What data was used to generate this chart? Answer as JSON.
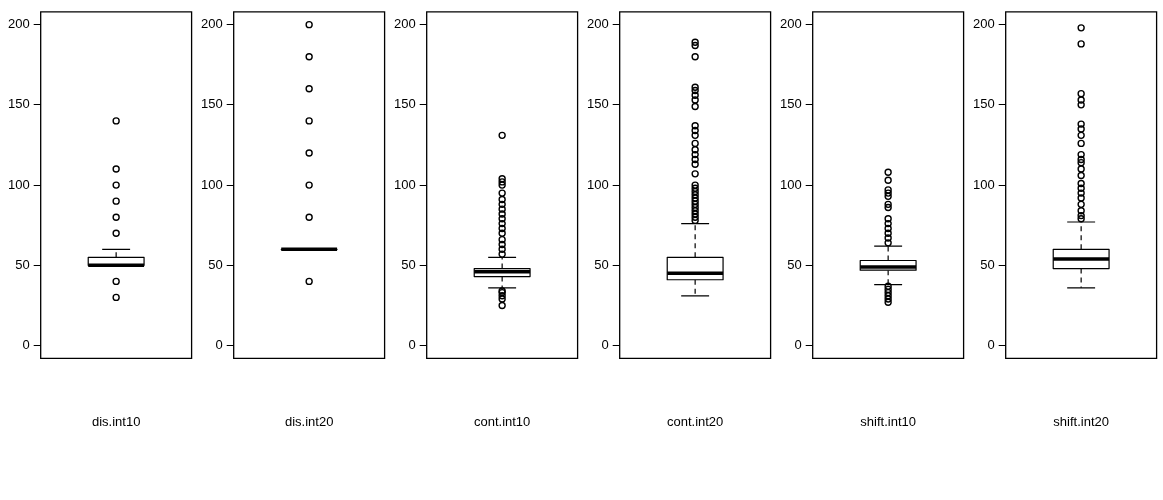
{
  "chart_data": [
    {
      "type": "box",
      "categories": [
        "dis.int10"
      ],
      "ylim": [
        -8,
        208
      ],
      "yticks": [
        0,
        50,
        100,
        150,
        200
      ],
      "marker": "circle",
      "boxes": [
        {
          "low": 50,
          "q1": 50,
          "median": 50,
          "q3": 55,
          "high": 60,
          "outliers": [
            30,
            40,
            70,
            80,
            90,
            100,
            110,
            140
          ]
        }
      ]
    },
    {
      "type": "box",
      "categories": [
        "dis.int20"
      ],
      "ylim": [
        -8,
        208
      ],
      "yticks": [
        0,
        50,
        100,
        150,
        200
      ],
      "marker": "circle",
      "boxes": [
        {
          "low": 60,
          "q1": 60,
          "median": 60,
          "q3": 60,
          "high": 60,
          "outliers": [
            40,
            80,
            100,
            120,
            140,
            160,
            180,
            200
          ]
        }
      ]
    },
    {
      "type": "box",
      "categories": [
        "cont.int10"
      ],
      "ylim": [
        -8,
        208
      ],
      "yticks": [
        0,
        50,
        100,
        150,
        200
      ],
      "marker": "circle",
      "boxes": [
        {
          "low": 36,
          "q1": 43,
          "median": 46,
          "q3": 48,
          "high": 55,
          "outliers": [
            25,
            29,
            31,
            33,
            34,
            57,
            60,
            63,
            66,
            70,
            73,
            76,
            79,
            82,
            85,
            88,
            91,
            95,
            100,
            102,
            104,
            131
          ]
        }
      ]
    },
    {
      "type": "box",
      "categories": [
        "cont.int20"
      ],
      "ylim": [
        -8,
        208
      ],
      "yticks": [
        0,
        50,
        100,
        150,
        200
      ],
      "marker": "circle",
      "boxes": [
        {
          "low": 31,
          "q1": 41,
          "median": 45,
          "q3": 55,
          "high": 76,
          "outliers": [
            78,
            80,
            82,
            84,
            86,
            88,
            90,
            92,
            94,
            96,
            98,
            100,
            107,
            113,
            116,
            119,
            122,
            126,
            131,
            134,
            137,
            149,
            153,
            156,
            159,
            161,
            180,
            187,
            189
          ]
        }
      ]
    },
    {
      "type": "box",
      "categories": [
        "shift.int10"
      ],
      "ylim": [
        -8,
        208
      ],
      "yticks": [
        0,
        50,
        100,
        150,
        200
      ],
      "marker": "circle",
      "boxes": [
        {
          "low": 38,
          "q1": 47,
          "median": 49,
          "q3": 53,
          "high": 62,
          "outliers": [
            27,
            29,
            31,
            33,
            35,
            37,
            64,
            67,
            70,
            73,
            76,
            79,
            86,
            88,
            93,
            95,
            97,
            103,
            108
          ]
        }
      ]
    },
    {
      "type": "box",
      "categories": [
        "shift.int20"
      ],
      "ylim": [
        -8,
        208
      ],
      "yticks": [
        0,
        50,
        100,
        150,
        200
      ],
      "marker": "circle",
      "boxes": [
        {
          "low": 36,
          "q1": 48,
          "median": 54,
          "q3": 60,
          "high": 77,
          "outliers": [
            79,
            81,
            84,
            88,
            92,
            95,
            98,
            101,
            106,
            110,
            114,
            116,
            119,
            126,
            131,
            135,
            138,
            150,
            153,
            157,
            188,
            198
          ]
        }
      ]
    }
  ]
}
